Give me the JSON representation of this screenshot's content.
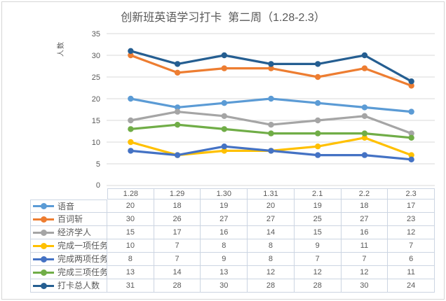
{
  "chart_data": {
    "type": "line",
    "title": "创新班英语学习打卡  第二周（1.28-2.3）",
    "ylabel": "人数",
    "xlabel": "",
    "categories": [
      "1.28",
      "1.29",
      "1.30",
      "1.31",
      "2.1",
      "2.2",
      "2.3"
    ],
    "series": [
      {
        "name": "语音",
        "color": "#5B9BD5",
        "values": [
          20,
          18,
          19,
          20,
          19,
          18,
          17
        ]
      },
      {
        "name": "百词斩",
        "color": "#ED7D31",
        "values": [
          30,
          26,
          27,
          27,
          25,
          27,
          23
        ]
      },
      {
        "name": "经济学人",
        "color": "#A5A5A5",
        "values": [
          15,
          17,
          16,
          14,
          15,
          16,
          12
        ]
      },
      {
        "name": "完成一项任务",
        "color": "#FFC000",
        "values": [
          10,
          7,
          8,
          8,
          9,
          11,
          7
        ]
      },
      {
        "name": "完成两项任务",
        "color": "#4472C4",
        "values": [
          8,
          7,
          9,
          8,
          7,
          7,
          6
        ]
      },
      {
        "name": "完成三项任务",
        "color": "#70AD47",
        "values": [
          13,
          14,
          13,
          12,
          12,
          12,
          11
        ]
      },
      {
        "name": "打卡总人数",
        "color": "#255E91",
        "values": [
          31,
          28,
          30,
          28,
          28,
          30,
          24
        ]
      }
    ],
    "ylim": [
      0,
      35
    ],
    "yticks": [
      0,
      5,
      10,
      15,
      20,
      25,
      30,
      35
    ],
    "grid": true,
    "legend_position": "table-left",
    "marker": "circle",
    "colors": {
      "gridline": "#d9d9d9",
      "axis_text": "#595959",
      "title_text": "#595959",
      "table_border": "#ccd5e2",
      "table_text": "#595959"
    }
  }
}
